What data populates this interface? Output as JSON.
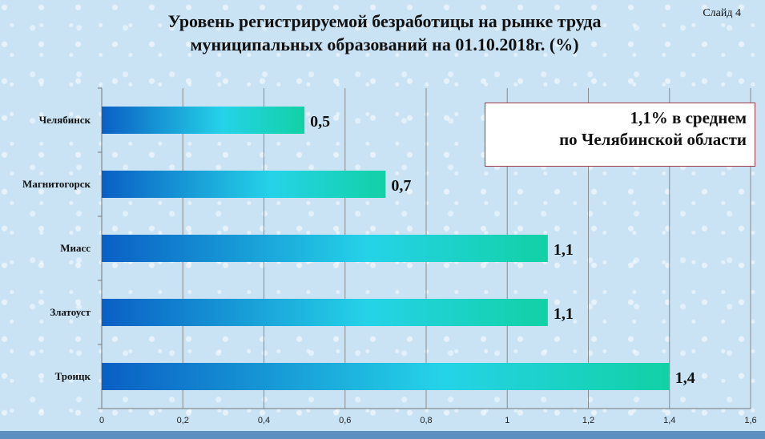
{
  "slide_label": "Слайд 4",
  "summary": {
    "line1": "1,1% в среднем",
    "line2": "по Челябинской области"
  },
  "colors": {
    "bar_start": "#0a5fc4",
    "bar_mid": "#25d3e8",
    "bar_end": "#12d1a5",
    "grid": "#8a8a8a"
  },
  "chart_data": {
    "type": "bar",
    "orientation": "horizontal",
    "title": "Уровень регистрируемой безработицы на рынке труда муниципальных образований на 01.10.2018г. (%)",
    "title_lines": [
      "Уровень регистрируемой безработицы на рынке труда",
      "муниципальных образований на 01.10.2018г. (%)"
    ],
    "categories": [
      "Челябинск",
      "Магнитогорск",
      "Миасс",
      "Златоуст",
      "Троицк"
    ],
    "values": [
      0.5,
      0.7,
      1.1,
      1.1,
      1.4
    ],
    "value_labels": [
      "0,5",
      "0,7",
      "1,1",
      "1,1",
      "1,4"
    ],
    "xlim": [
      0,
      1.6
    ],
    "x_ticks": [
      0,
      0.2,
      0.4,
      0.6,
      0.8,
      1,
      1.2,
      1.4,
      1.6
    ],
    "x_tick_labels": [
      "0",
      "0,2",
      "0,4",
      "0,6",
      "0,8",
      "1",
      "1,2",
      "1,4",
      "1,6"
    ],
    "grid": true,
    "xlabel": "",
    "ylabel": ""
  }
}
